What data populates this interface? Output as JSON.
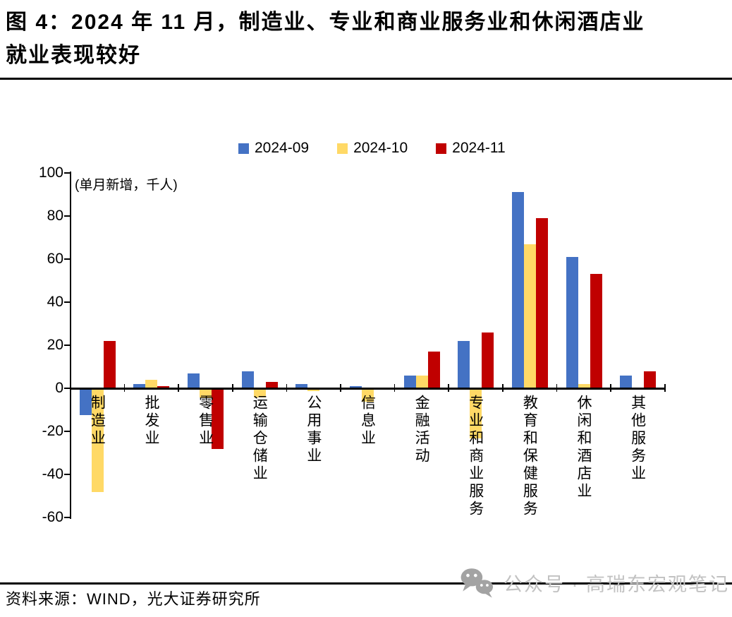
{
  "title_lines": [
    "图 4：2024 年 11 月，制造业、专业和商业服务业和休闲酒店业",
    "就业表现较好"
  ],
  "source": "资料来源：WIND，光大证券研究所",
  "watermark": {
    "icon": "wechat-icon",
    "text": "公众号 · 高瑞东宏观笔记"
  },
  "colors": {
    "series_2024_09": "#4472C4",
    "series_2024_10": "#FFD966",
    "series_2024_11": "#C00000",
    "axis": "#000000",
    "watermark_gray": "#c2c2c2"
  },
  "chart_data": {
    "type": "bar",
    "title": "",
    "unit_label": "(单月新增，千人)",
    "legend_position": "top-center",
    "grid": false,
    "ylim": [
      -60,
      100
    ],
    "y_ticks": [
      100,
      80,
      60,
      40,
      20,
      0,
      -20,
      -40,
      -60
    ],
    "categories": [
      "制造业",
      "批发业",
      "零售业",
      "运输仓储业",
      "公用事业",
      "信息业",
      "金融活动",
      "专业和商业服务",
      "教育和保健服务",
      "休闲和酒店业",
      "其他服务业"
    ],
    "series": [
      {
        "name": "2024-09",
        "color": "#4472C4",
        "values": [
          -12,
          2,
          7,
          8,
          2,
          1,
          6,
          22,
          91,
          61,
          6
        ]
      },
      {
        "name": "2024-10",
        "color": "#FFD966",
        "values": [
          -48,
          4,
          -4,
          -4,
          -1,
          -6,
          6,
          -23,
          67,
          2,
          0
        ]
      },
      {
        "name": "2024-11",
        "color": "#C00000",
        "values": [
          22,
          1,
          -28,
          3,
          0.3,
          0,
          17,
          26,
          79,
          53,
          8
        ]
      }
    ]
  }
}
